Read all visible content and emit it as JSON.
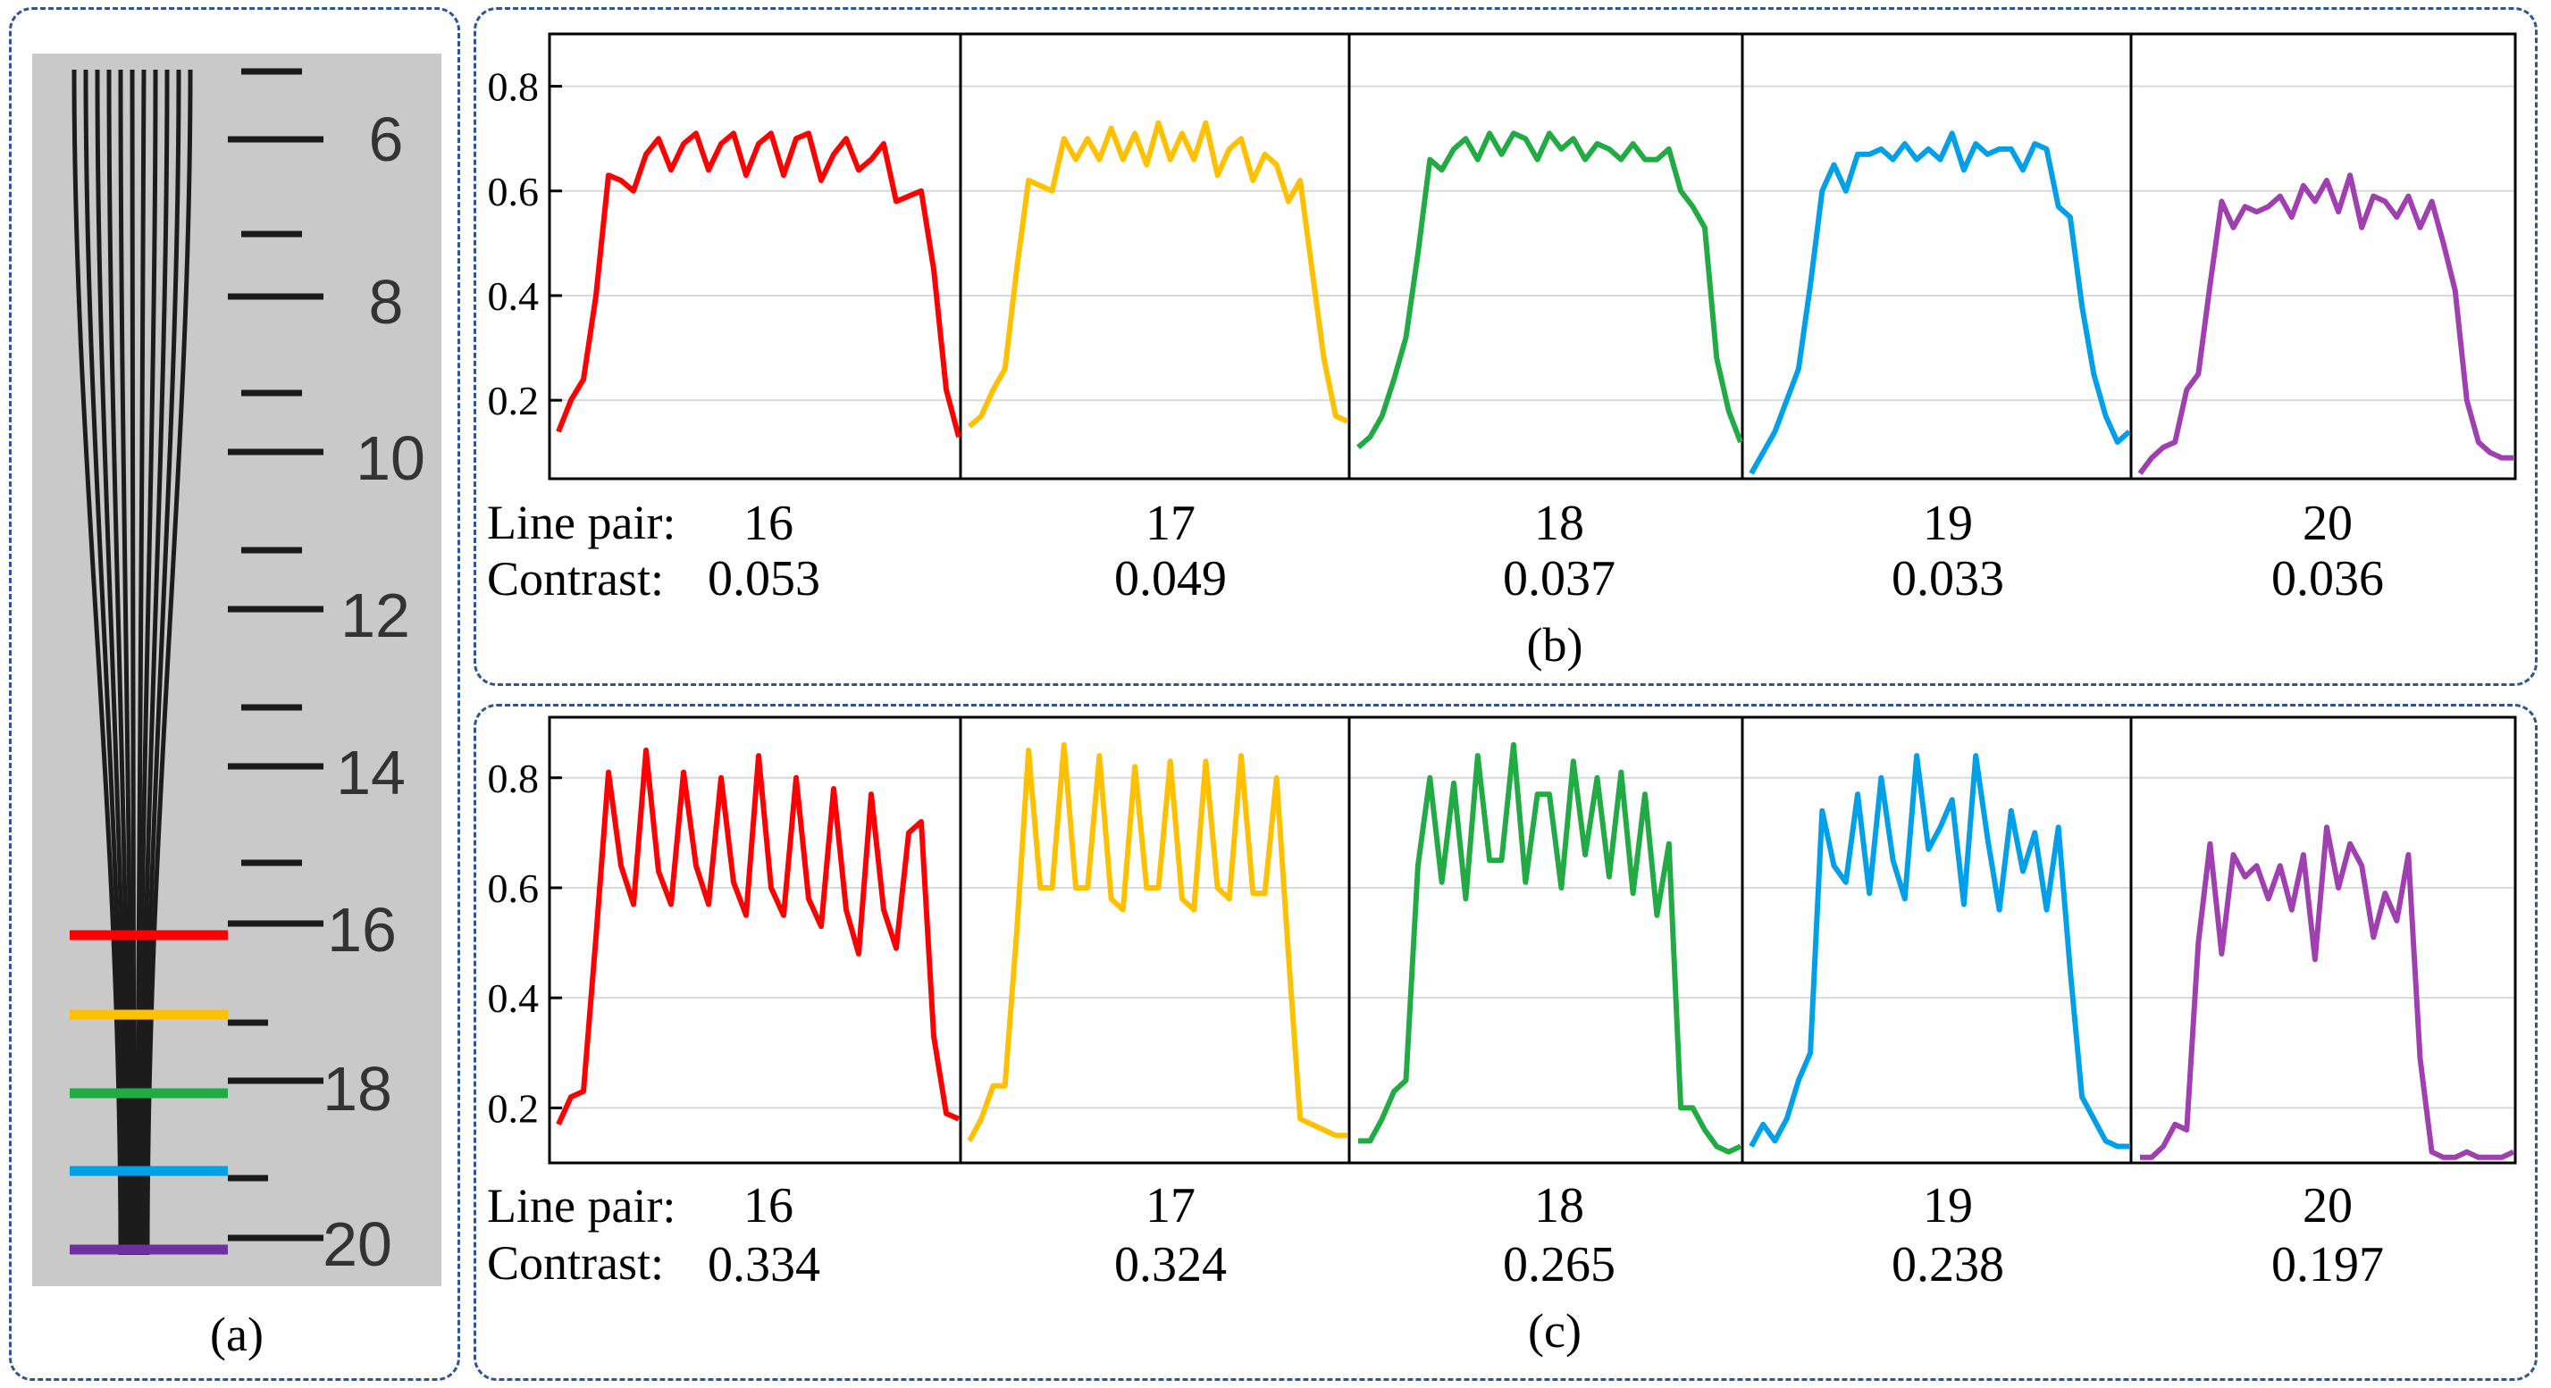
{
  "panels": {
    "a": {
      "caption": "(a)"
    },
    "b": {
      "caption": "(b)"
    },
    "c": {
      "caption": "(c)"
    }
  },
  "phantom": {
    "tick_labels": [
      "6",
      "8",
      "10",
      "12",
      "14",
      "16",
      "18",
      "20"
    ],
    "profile_markers": [
      {
        "line_pair": "16",
        "color": "#ff0000"
      },
      {
        "line_pair": "17",
        "color": "#ffc000"
      },
      {
        "line_pair": "18",
        "color": "#22aa44"
      },
      {
        "line_pair": "19",
        "color": "#00a0e8"
      },
      {
        "line_pair": "20",
        "color": "#7030a0"
      }
    ]
  },
  "labels": {
    "line_pair": "Line pair:",
    "contrast": "Contrast:"
  },
  "colors": [
    "#ff0000",
    "#ffc000",
    "#22aa44",
    "#00a0e8",
    "#a040b0"
  ],
  "chart_data": [
    {
      "type": "line",
      "panel": "(b)",
      "ylim": [
        0.05,
        0.9
      ],
      "yticks": [
        "0.2",
        "0.4",
        "0.6",
        "0.8"
      ],
      "ytick_values": [
        0.2,
        0.4,
        0.6,
        0.8
      ],
      "grid": true,
      "series": [
        {
          "name": "16",
          "contrast": "0.053",
          "values": [
            0.14,
            0.2,
            0.24,
            0.4,
            0.63,
            0.62,
            0.6,
            0.67,
            0.7,
            0.64,
            0.69,
            0.71,
            0.64,
            0.69,
            0.71,
            0.63,
            0.69,
            0.71,
            0.63,
            0.7,
            0.71,
            0.62,
            0.67,
            0.7,
            0.64,
            0.66,
            0.69,
            0.58,
            0.59,
            0.6,
            0.45,
            0.22,
            0.13
          ]
        },
        {
          "name": "17",
          "contrast": "0.049",
          "values": [
            0.15,
            0.17,
            0.22,
            0.26,
            0.45,
            0.62,
            0.61,
            0.6,
            0.7,
            0.66,
            0.7,
            0.66,
            0.72,
            0.66,
            0.71,
            0.65,
            0.73,
            0.66,
            0.71,
            0.66,
            0.73,
            0.63,
            0.68,
            0.7,
            0.62,
            0.67,
            0.65,
            0.58,
            0.62,
            0.45,
            0.28,
            0.17,
            0.16
          ]
        },
        {
          "name": "18",
          "contrast": "0.037",
          "values": [
            0.11,
            0.13,
            0.17,
            0.24,
            0.32,
            0.48,
            0.66,
            0.64,
            0.68,
            0.7,
            0.66,
            0.71,
            0.67,
            0.71,
            0.7,
            0.66,
            0.71,
            0.68,
            0.7,
            0.66,
            0.69,
            0.68,
            0.66,
            0.69,
            0.66,
            0.66,
            0.68,
            0.6,
            0.57,
            0.53,
            0.28,
            0.18,
            0.12
          ]
        },
        {
          "name": "19",
          "contrast": "0.033",
          "values": [
            0.06,
            0.1,
            0.14,
            0.2,
            0.26,
            0.42,
            0.6,
            0.65,
            0.6,
            0.67,
            0.67,
            0.68,
            0.66,
            0.69,
            0.66,
            0.68,
            0.66,
            0.71,
            0.64,
            0.69,
            0.67,
            0.68,
            0.68,
            0.64,
            0.69,
            0.68,
            0.57,
            0.55,
            0.38,
            0.25,
            0.17,
            0.12,
            0.14
          ]
        },
        {
          "name": "20",
          "contrast": "0.036",
          "values": [
            0.06,
            0.09,
            0.11,
            0.12,
            0.22,
            0.25,
            0.42,
            0.58,
            0.53,
            0.57,
            0.56,
            0.57,
            0.59,
            0.55,
            0.61,
            0.58,
            0.62,
            0.56,
            0.63,
            0.53,
            0.59,
            0.58,
            0.55,
            0.59,
            0.53,
            0.58,
            0.5,
            0.41,
            0.2,
            0.12,
            0.1,
            0.09,
            0.09
          ]
        }
      ]
    },
    {
      "type": "line",
      "panel": "(c)",
      "ylim": [
        0.1,
        0.91
      ],
      "yticks": [
        "0.2",
        "0.4",
        "0.6",
        "0.8"
      ],
      "ytick_values": [
        0.2,
        0.4,
        0.6,
        0.8
      ],
      "grid": true,
      "series": [
        {
          "name": "16",
          "contrast": "0.334",
          "values": [
            0.17,
            0.22,
            0.23,
            0.51,
            0.81,
            0.64,
            0.57,
            0.85,
            0.63,
            0.57,
            0.81,
            0.64,
            0.57,
            0.8,
            0.61,
            0.55,
            0.84,
            0.6,
            0.55,
            0.8,
            0.58,
            0.53,
            0.78,
            0.56,
            0.48,
            0.77,
            0.56,
            0.49,
            0.7,
            0.72,
            0.33,
            0.19,
            0.18
          ]
        },
        {
          "name": "17",
          "contrast": "0.324",
          "values": [
            0.14,
            0.18,
            0.24,
            0.24,
            0.52,
            0.85,
            0.6,
            0.6,
            0.86,
            0.6,
            0.6,
            0.84,
            0.58,
            0.56,
            0.82,
            0.6,
            0.6,
            0.83,
            0.58,
            0.56,
            0.83,
            0.6,
            0.58,
            0.84,
            0.59,
            0.59,
            0.8,
            0.48,
            0.18,
            0.17,
            0.16,
            0.15,
            0.15
          ]
        },
        {
          "name": "18",
          "contrast": "0.265",
          "values": [
            0.14,
            0.14,
            0.18,
            0.23,
            0.25,
            0.64,
            0.8,
            0.61,
            0.79,
            0.58,
            0.84,
            0.65,
            0.65,
            0.86,
            0.61,
            0.77,
            0.77,
            0.6,
            0.83,
            0.66,
            0.8,
            0.62,
            0.81,
            0.59,
            0.77,
            0.55,
            0.68,
            0.2,
            0.2,
            0.16,
            0.13,
            0.12,
            0.13
          ]
        },
        {
          "name": "19",
          "contrast": "0.238",
          "values": [
            0.13,
            0.17,
            0.14,
            0.18,
            0.25,
            0.3,
            0.74,
            0.64,
            0.61,
            0.77,
            0.59,
            0.8,
            0.65,
            0.58,
            0.84,
            0.67,
            0.71,
            0.76,
            0.57,
            0.84,
            0.69,
            0.56,
            0.74,
            0.63,
            0.7,
            0.56,
            0.71,
            0.45,
            0.22,
            0.18,
            0.14,
            0.13,
            0.13
          ]
        },
        {
          "name": "20",
          "contrast": "0.197",
          "values": [
            0.11,
            0.11,
            0.13,
            0.17,
            0.16,
            0.5,
            0.68,
            0.48,
            0.66,
            0.62,
            0.64,
            0.58,
            0.64,
            0.56,
            0.66,
            0.47,
            0.71,
            0.6,
            0.68,
            0.64,
            0.51,
            0.59,
            0.54,
            0.66,
            0.29,
            0.12,
            0.11,
            0.11,
            0.12,
            0.11,
            0.11,
            0.11,
            0.12
          ]
        }
      ]
    }
  ]
}
